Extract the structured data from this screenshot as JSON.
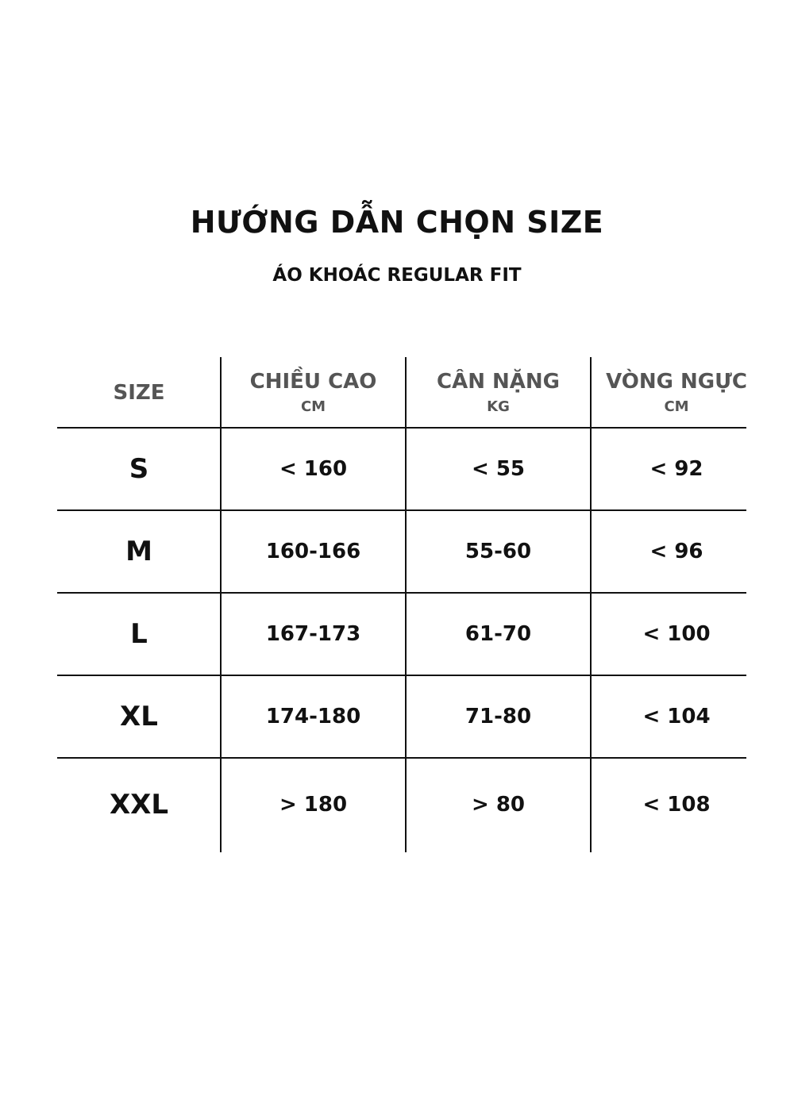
{
  "title": "HƯỚNG DẪN CHỌN SIZE",
  "subtitle": "ÁO KHOÁC REGULAR FIT",
  "table": {
    "headers": [
      {
        "label": "SIZE",
        "unit": ""
      },
      {
        "label": "CHIỀU CAO",
        "unit": "CM"
      },
      {
        "label": "CÂN NẶNG",
        "unit": "KG"
      },
      {
        "label": "VÒNG NGỰC",
        "unit": "CM"
      }
    ],
    "rows": [
      [
        "S",
        "< 160",
        "< 55",
        "< 92"
      ],
      [
        "M",
        "160-166",
        "55-60",
        "< 96"
      ],
      [
        "L",
        "167-173",
        "61-70",
        "< 100"
      ],
      [
        "XL",
        "174-180",
        "71-80",
        "< 104"
      ],
      [
        "XXL",
        "> 180",
        "> 80",
        "< 108"
      ]
    ]
  }
}
